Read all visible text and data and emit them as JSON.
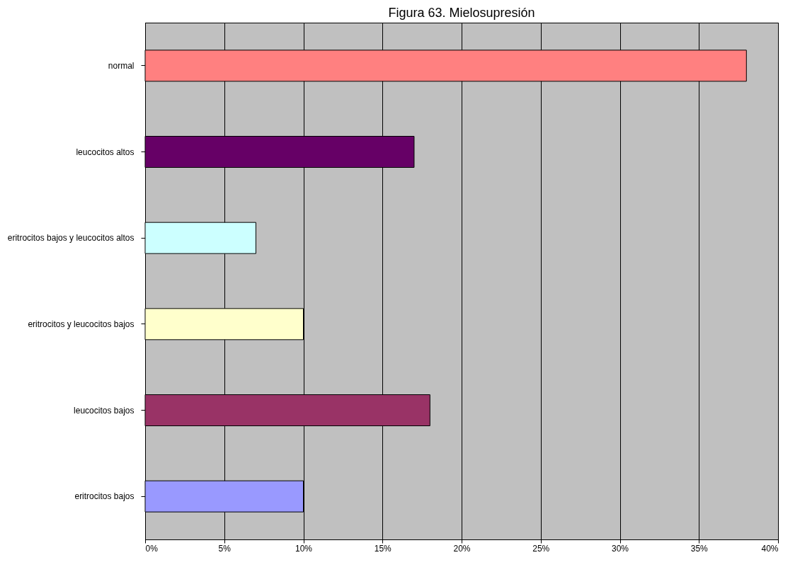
{
  "chart_data": {
    "type": "bar",
    "orientation": "horizontal",
    "title": "Figura 63. Mielosupresión",
    "categories": [
      "normal",
      "leucocitos altos",
      "eritrocitos bajos y leucocitos altos",
      "eritrocitos y leucocitos bajos",
      "leucocitos bajos",
      "eritrocitos bajos"
    ],
    "values": [
      38,
      17,
      7,
      10,
      18,
      10
    ],
    "colors": [
      "#ff8080",
      "#660066",
      "#ccffff",
      "#ffffcc",
      "#993366",
      "#9999ff"
    ],
    "xlim": [
      0,
      40
    ],
    "xticks": [
      {
        "value": 0,
        "label": "0%"
      },
      {
        "value": 5,
        "label": "5%"
      },
      {
        "value": 10,
        "label": "10%"
      },
      {
        "value": 15,
        "label": "15%"
      },
      {
        "value": 20,
        "label": "20%"
      },
      {
        "value": 25,
        "label": "25%"
      },
      {
        "value": 30,
        "label": "30%"
      },
      {
        "value": 35,
        "label": "35%"
      },
      {
        "value": 40,
        "label": "40%"
      }
    ],
    "grid": "x"
  }
}
